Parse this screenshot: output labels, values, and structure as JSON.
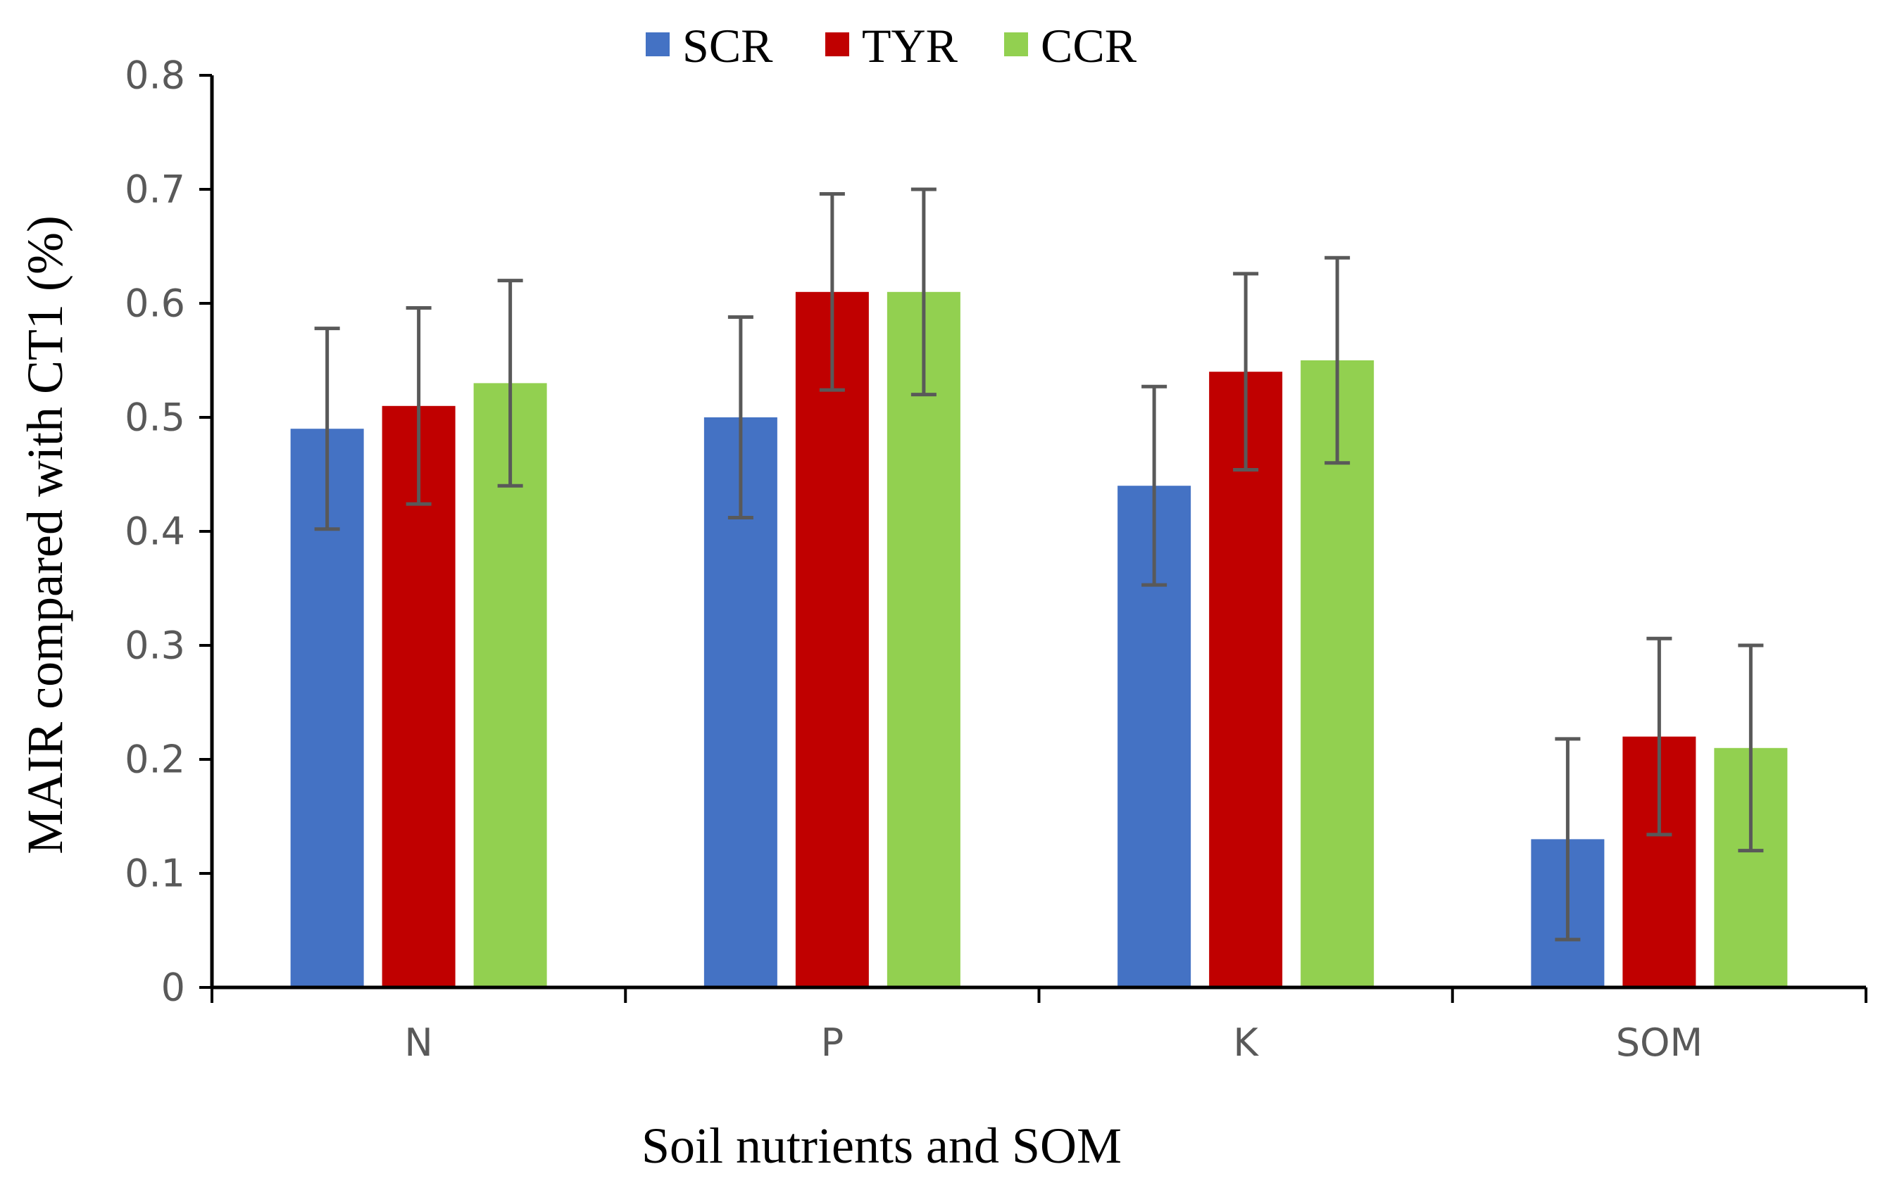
{
  "chart_data": {
    "type": "bar",
    "title": "",
    "xlabel": "Soil nutrients and SOM",
    "ylabel": "MAIR compared with CT1 (%)",
    "categories": [
      "N",
      "P",
      "K",
      "SOM"
    ],
    "ylim": [
      0,
      0.8
    ],
    "yticks": [
      0,
      0.1,
      0.2,
      0.3,
      0.4,
      0.5,
      0.6,
      0.7,
      0.8
    ],
    "ytick_labels": [
      "0",
      "0.1",
      "0.2",
      "0.3",
      "0.4",
      "0.5",
      "0.6",
      "0.7",
      "0.8"
    ],
    "legend_position": "top-center",
    "grid": false,
    "series": [
      {
        "name": "SCR",
        "color": "#4472C4",
        "values": [
          0.49,
          0.5,
          0.44,
          0.13
        ],
        "errors": [
          0.088,
          0.088,
          0.087,
          0.088
        ]
      },
      {
        "name": "TYR",
        "color": "#C00000",
        "values": [
          0.51,
          0.61,
          0.54,
          0.22
        ],
        "errors": [
          0.086,
          0.086,
          0.086,
          0.086
        ]
      },
      {
        "name": "CCR",
        "color": "#92D050",
        "values": [
          0.53,
          0.61,
          0.55,
          0.21
        ],
        "errors": [
          0.09,
          0.09,
          0.09,
          0.09
        ]
      }
    ]
  }
}
